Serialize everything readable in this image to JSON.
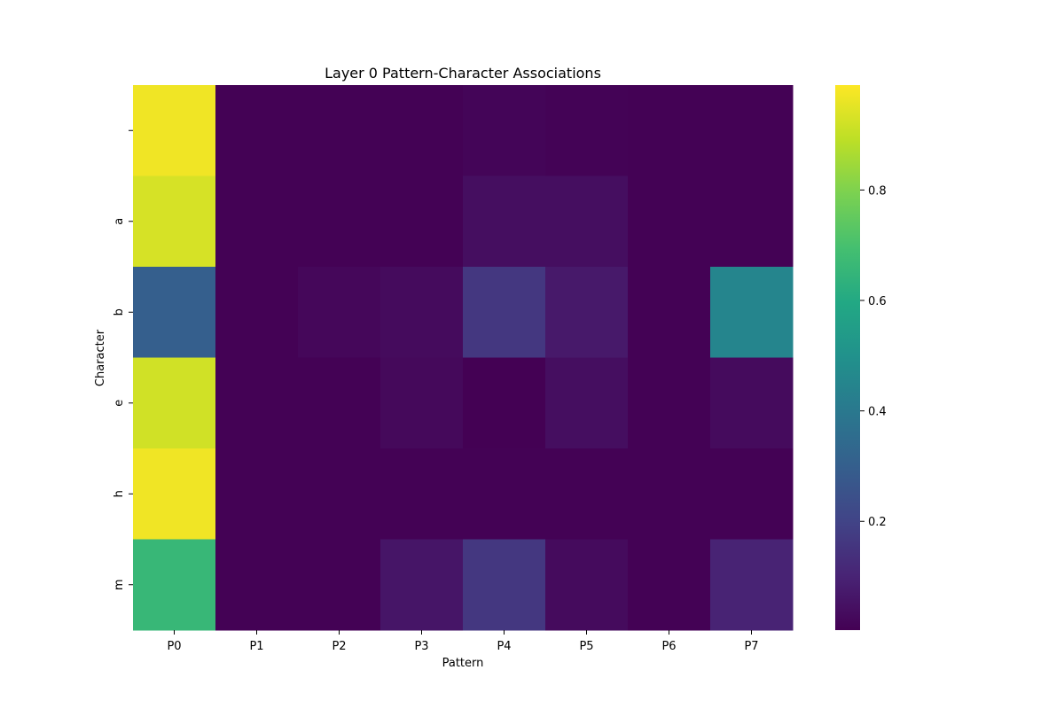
{
  "chart_data": {
    "type": "heatmap",
    "title": "Layer 0 Pattern-Character Associations",
    "xlabel": "Pattern",
    "ylabel": "Character",
    "x_categories": [
      "P0",
      "P1",
      "P2",
      "P3",
      "P4",
      "P5",
      "P6",
      "P7"
    ],
    "y_categories": [
      " ",
      "a",
      "b",
      "e",
      "h",
      "m"
    ],
    "values": [
      [
        0.97,
        0.005,
        0.005,
        0.005,
        0.015,
        0.008,
        0.005,
        0.005
      ],
      [
        0.93,
        0.005,
        0.005,
        0.005,
        0.04,
        0.04,
        0.005,
        0.005
      ],
      [
        0.3,
        0.005,
        0.02,
        0.03,
        0.16,
        0.07,
        0.005,
        0.45
      ],
      [
        0.92,
        0.005,
        0.005,
        0.025,
        0.003,
        0.04,
        0.005,
        0.03
      ],
      [
        0.97,
        0.005,
        0.005,
        0.005,
        0.005,
        0.005,
        0.005,
        0.005
      ],
      [
        0.66,
        0.005,
        0.005,
        0.06,
        0.16,
        0.03,
        0.005,
        0.1
      ]
    ],
    "colormap": "viridis",
    "vmin": 0.003,
    "vmax": 0.99,
    "colorbar_ticks": [
      0.2,
      0.4,
      0.6,
      0.8
    ],
    "colorbar_tick_labels": [
      "0.2",
      "0.4",
      "0.6",
      "0.8"
    ],
    "grid": false
  }
}
